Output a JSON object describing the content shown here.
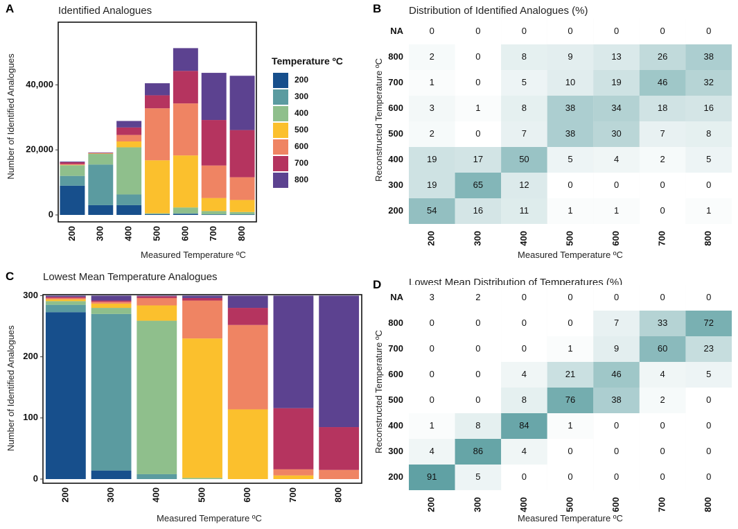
{
  "palette": {
    "200": "#174f8c",
    "300": "#5b9ba0",
    "400": "#8fbf8c",
    "500": "#fbc02d",
    "600": "#ef8463",
    "700": "#b5345f",
    "800": "#5c4290"
  },
  "chart_data": [
    {
      "panel": "A",
      "type": "bar",
      "stacked": true,
      "title": "Identified Analogues",
      "xlabel": "Measured Temperature ºC",
      "ylabel": "Number of Identified Analogues",
      "ylim": [
        0,
        58000
      ],
      "yticks": [
        0,
        20000,
        40000
      ],
      "ytick_labels": [
        "0",
        "20,000",
        "40,000"
      ],
      "categories": [
        "200",
        "300",
        "400",
        "500",
        "600",
        "700",
        "800"
      ],
      "legend_title": "Temperature ºC",
      "legend_entries": [
        "200",
        "300",
        "400",
        "500",
        "600",
        "700",
        "800"
      ],
      "series": [
        {
          "name": "200",
          "values": [
            9000,
            3000,
            3000,
            200,
            300,
            100,
            100
          ]
        },
        {
          "name": "300",
          "values": [
            3000,
            12500,
            3300,
            100,
            200,
            100,
            100
          ]
        },
        {
          "name": "400",
          "values": [
            3300,
            3300,
            14500,
            200,
            1800,
            1000,
            700
          ]
        },
        {
          "name": "500",
          "values": [
            100,
            100,
            1800,
            16300,
            16000,
            4000,
            3700
          ]
        },
        {
          "name": "600",
          "values": [
            200,
            100,
            2000,
            16000,
            16000,
            10000,
            7000
          ]
        },
        {
          "name": "700",
          "values": [
            600,
            100,
            2300,
            4000,
            10000,
            14000,
            14500
          ]
        },
        {
          "name": "800",
          "values": [
            200,
            100,
            2000,
            3700,
            7000,
            14500,
            16700
          ]
        }
      ]
    },
    {
      "panel": "B",
      "type": "heatmap",
      "title": "Distribution of Identified Analogues (%)",
      "xlabel": "Measured Temperature ºC",
      "ylabel": "Reconstructed Temperature ºC",
      "x": [
        "200",
        "300",
        "400",
        "500",
        "600",
        "700",
        "800"
      ],
      "y": [
        "NA",
        "800",
        "700",
        "600",
        "500",
        "400",
        "300",
        "200"
      ],
      "values": [
        [
          0,
          0,
          0,
          0,
          0,
          0,
          0
        ],
        [
          2,
          0,
          8,
          9,
          13,
          26,
          38
        ],
        [
          1,
          0,
          5,
          10,
          19,
          46,
          32
        ],
        [
          3,
          1,
          8,
          38,
          34,
          18,
          16
        ],
        [
          2,
          0,
          7,
          38,
          30,
          7,
          8
        ],
        [
          19,
          17,
          50,
          5,
          4,
          2,
          5
        ],
        [
          19,
          65,
          12,
          0,
          0,
          0,
          0
        ],
        [
          54,
          16,
          11,
          1,
          1,
          0,
          1
        ]
      ]
    },
    {
      "panel": "C",
      "type": "bar",
      "stacked": true,
      "title": "Lowest Mean Temperature Analogues",
      "xlabel": "Measured Temperature ºC",
      "ylabel": "Number of Identified Analogues",
      "ylim": [
        0,
        305
      ],
      "yticks": [
        0,
        100,
        200,
        300
      ],
      "ytick_labels": [
        "0",
        "100",
        "200",
        "300"
      ],
      "categories": [
        "200",
        "300",
        "400",
        "500",
        "600",
        "700",
        "800"
      ],
      "series": [
        {
          "name": "200",
          "values": [
            273,
            14,
            0,
            0,
            0,
            0,
            0
          ]
        },
        {
          "name": "300",
          "values": [
            12,
            256,
            8,
            0,
            0,
            0,
            0
          ]
        },
        {
          "name": "400",
          "values": [
            6,
            10,
            251,
            2,
            0,
            0,
            0
          ]
        },
        {
          "name": "500",
          "values": [
            3,
            7,
            25,
            228,
            114,
            6,
            0
          ]
        },
        {
          "name": "600",
          "values": [
            2,
            3,
            12,
            62,
            138,
            10,
            15
          ]
        },
        {
          "name": "700",
          "values": [
            2,
            2,
            3,
            4,
            28,
            100,
            70
          ]
        },
        {
          "name": "800",
          "values": [
            2,
            8,
            1,
            4,
            20,
            184,
            215
          ]
        }
      ]
    },
    {
      "panel": "D",
      "type": "heatmap",
      "title": "Lowest Mean Distribution of Temperatures (%)",
      "xlabel": "Measured Temperature ºC",
      "ylabel": "Reconstructed Temperature ºC",
      "x": [
        "200",
        "300",
        "400",
        "500",
        "600",
        "700",
        "800"
      ],
      "y": [
        "NA",
        "800",
        "700",
        "600",
        "500",
        "400",
        "300",
        "200"
      ],
      "values": [
        [
          3,
          2,
          0,
          0,
          0,
          0,
          0
        ],
        [
          0,
          0,
          0,
          0,
          7,
          33,
          72
        ],
        [
          0,
          0,
          0,
          1,
          9,
          60,
          23
        ],
        [
          0,
          0,
          4,
          21,
          46,
          4,
          5
        ],
        [
          0,
          0,
          8,
          76,
          38,
          2,
          0
        ],
        [
          1,
          8,
          84,
          1,
          0,
          0,
          0
        ],
        [
          4,
          86,
          4,
          0,
          0,
          0,
          0
        ],
        [
          91,
          5,
          0,
          0,
          0,
          0,
          0
        ]
      ]
    }
  ]
}
